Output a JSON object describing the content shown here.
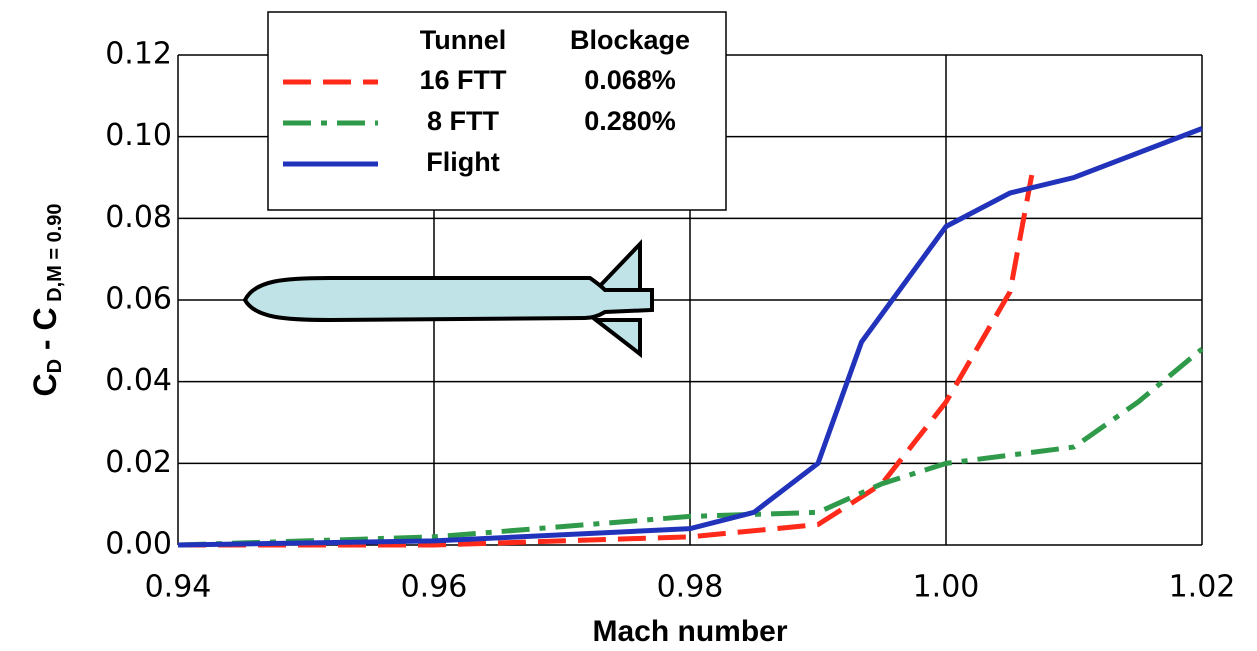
{
  "chart_data": {
    "type": "line",
    "xlabel": "Mach number",
    "ylabel": [
      "C",
      "D",
      " - C",
      " D,M = 0.90"
    ],
    "legend_headers": [
      "Tunnel",
      "Blockage"
    ],
    "xlim": [
      0.94,
      1.02
    ],
    "xticks": [
      0.94,
      0.96,
      0.98,
      {
        "value": 1.0,
        "label": "1.00"
      },
      1.02
    ],
    "ylim": [
      0,
      0.12
    ],
    "yticks": [
      {
        "value": 0,
        "label": "0.00"
      },
      0.02,
      0.04,
      0.06,
      0.08,
      {
        "value": 0.1,
        "label": "0.10"
      },
      0.12
    ],
    "grid": true,
    "series": [
      {
        "name": "16 FTT",
        "blockage": "0.068%",
        "color": "#ff2a1a",
        "dash": "28 12",
        "x": [
          0.94,
          0.96,
          0.98,
          0.99,
          0.995,
          1.0,
          1.005,
          1.0067
        ],
        "values": [
          0,
          0,
          0.002,
          0.005,
          0.015,
          0.035,
          0.062,
          0.0906
        ]
      },
      {
        "name": "8 FTT",
        "blockage": "0.280%",
        "color": "#2e9a4a",
        "dash": "28 10 6 10",
        "x": [
          0.94,
          0.96,
          0.98,
          0.99,
          0.995,
          1.0,
          1.01,
          1.015,
          1.02
        ],
        "values": [
          0,
          0.002,
          0.007,
          0.008,
          0.015,
          0.02,
          0.024,
          0.035,
          0.048
        ]
      },
      {
        "name": "Flight",
        "color": "#2233bb",
        "dash": "none",
        "x": [
          0.94,
          0.96,
          0.98,
          0.985,
          0.99,
          0.9934,
          1.0,
          1.005,
          1.01,
          1.02
        ],
        "values": [
          0,
          0.001,
          0.004,
          0.008,
          0.02,
          0.0497,
          0.078,
          0.0862,
          0.09,
          0.102
        ]
      }
    ]
  }
}
